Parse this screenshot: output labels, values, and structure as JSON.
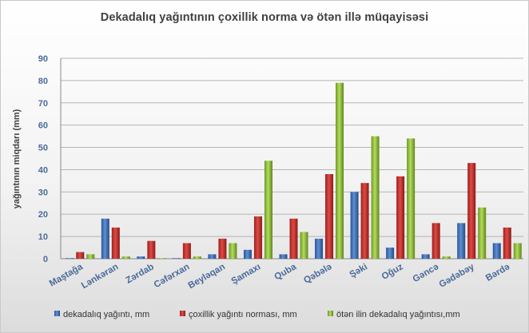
{
  "chart_data": {
    "type": "bar",
    "title": "Dekadalıq yağıntının çoxillik norma  və ötən illə müqayisəsi",
    "ylabel": "yağıntının miqdarı (mm)",
    "xlabel": "",
    "ylim": [
      0,
      90
    ],
    "yticks": [
      0,
      10,
      20,
      30,
      40,
      50,
      60,
      70,
      80,
      90
    ],
    "grid": true,
    "legend_position": "bottom",
    "categories": [
      "Maştağa",
      "Lənkəran",
      "Zərdab",
      "Cəfərxan",
      "Beyləqan",
      "Şamaxı",
      "Quba",
      "Qəbələ",
      "Şəki",
      "Oğuz",
      "Gəncə",
      "Gədəbəy",
      "Bərdə"
    ],
    "series": [
      {
        "name": "dekadalıq yağıntı, mm",
        "color": "#3a6db5",
        "values": [
          0,
          18,
          1,
          0,
          2,
          4,
          2,
          9,
          30,
          5,
          2,
          16,
          7
        ]
      },
      {
        "name": "çoxillik yağıntı norması, mm",
        "color": "#c0302e",
        "values": [
          3,
          14,
          8,
          7,
          9,
          19,
          18,
          38,
          34,
          37,
          16,
          43,
          14
        ]
      },
      {
        "name": "ötən ilin dekadalıq yağıntısı,mm",
        "color": "#8db63c",
        "values": [
          2,
          1,
          0,
          1,
          7,
          44,
          12,
          79,
          55,
          54,
          1,
          23,
          7
        ]
      }
    ]
  }
}
